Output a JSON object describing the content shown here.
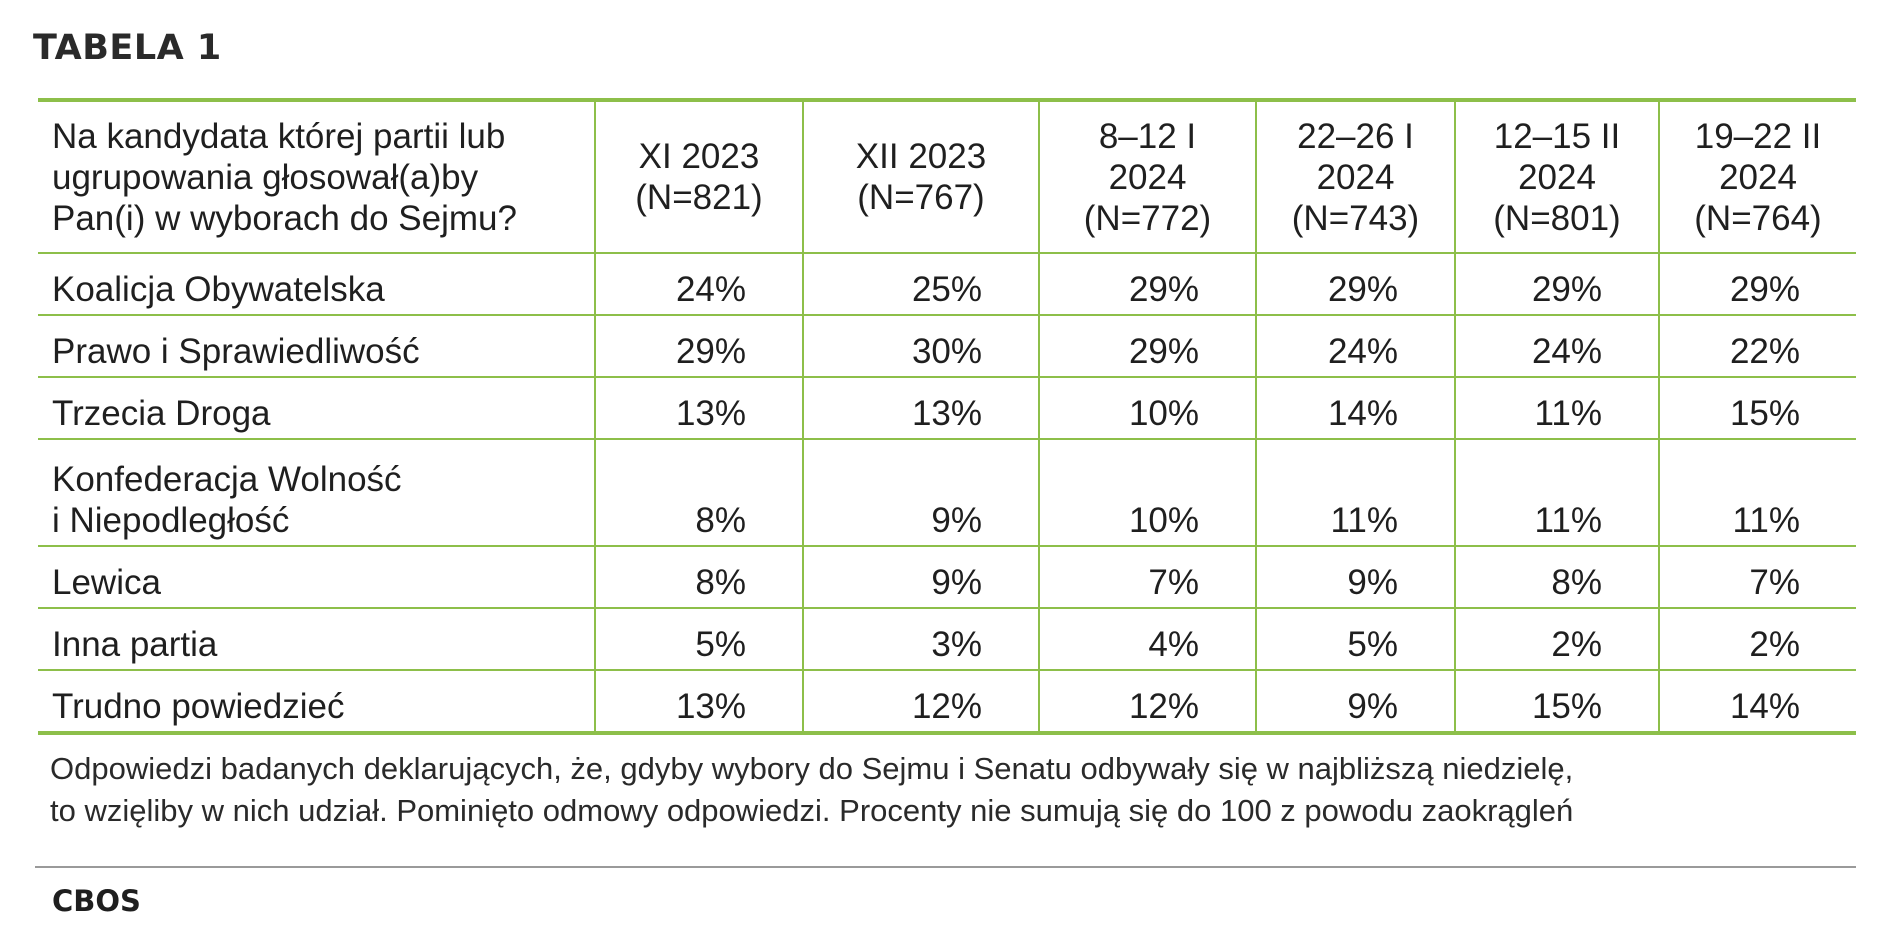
{
  "title": "TABELA 1",
  "table": {
    "question_lines": [
      "Na kandydata której partii lub",
      "ugrupowania głosował(a)by",
      "Pan(i) w wyborach do Sejmu?"
    ],
    "columns": [
      {
        "lines": [
          "XI 2023",
          "(N=821)"
        ]
      },
      {
        "lines": [
          "XII 2023",
          "(N=767)"
        ]
      },
      {
        "lines": [
          "8–12 I",
          "2024",
          "(N=772)"
        ]
      },
      {
        "lines": [
          "22–26 I",
          "2024",
          "(N=743)"
        ]
      },
      {
        "lines": [
          "12–15 II",
          "2024",
          "(N=801)"
        ]
      },
      {
        "lines": [
          "19–22 II",
          "2024",
          "(N=764)"
        ]
      }
    ],
    "rows": [
      {
        "label_lines": [
          "Koalicja Obywatelska"
        ],
        "values": [
          "24%",
          "25%",
          "29%",
          "29%",
          "29%",
          "29%"
        ]
      },
      {
        "label_lines": [
          "Prawo i Sprawiedliwość"
        ],
        "values": [
          "29%",
          "30%",
          "29%",
          "24%",
          "24%",
          "22%"
        ]
      },
      {
        "label_lines": [
          "Trzecia Droga"
        ],
        "values": [
          "13%",
          "13%",
          "10%",
          "14%",
          "11%",
          "15%"
        ]
      },
      {
        "label_lines": [
          "Konfederacja Wolność",
          "i Niepodległość"
        ],
        "values": [
          "8%",
          "9%",
          "10%",
          "11%",
          "11%",
          "11%"
        ]
      },
      {
        "label_lines": [
          "Lewica"
        ],
        "values": [
          "8%",
          "9%",
          "7%",
          "9%",
          "8%",
          "7%"
        ]
      },
      {
        "label_lines": [
          "Inna partia"
        ],
        "values": [
          "5%",
          "3%",
          "4%",
          "5%",
          "2%",
          "2%"
        ]
      },
      {
        "label_lines": [
          "Trudno powiedzieć"
        ],
        "values": [
          "13%",
          "12%",
          "12%",
          "9%",
          "15%",
          "14%"
        ]
      }
    ]
  },
  "note_lines": [
    "Odpowiedzi badanych deklarujących, że, gdyby wybory do Sejmu i Senatu odbywały się w najbliższą niedzielę,",
    "to wzięliby w nich udział. Pominięto odmowy odpowiedzi. Procenty nie sumują się do 100 z powodu zaokrągleń"
  ],
  "source": "CBOS",
  "colors": {
    "accent": "#8dbf4a",
    "text": "#1f1f1f",
    "rule": "#9a9a9a"
  }
}
